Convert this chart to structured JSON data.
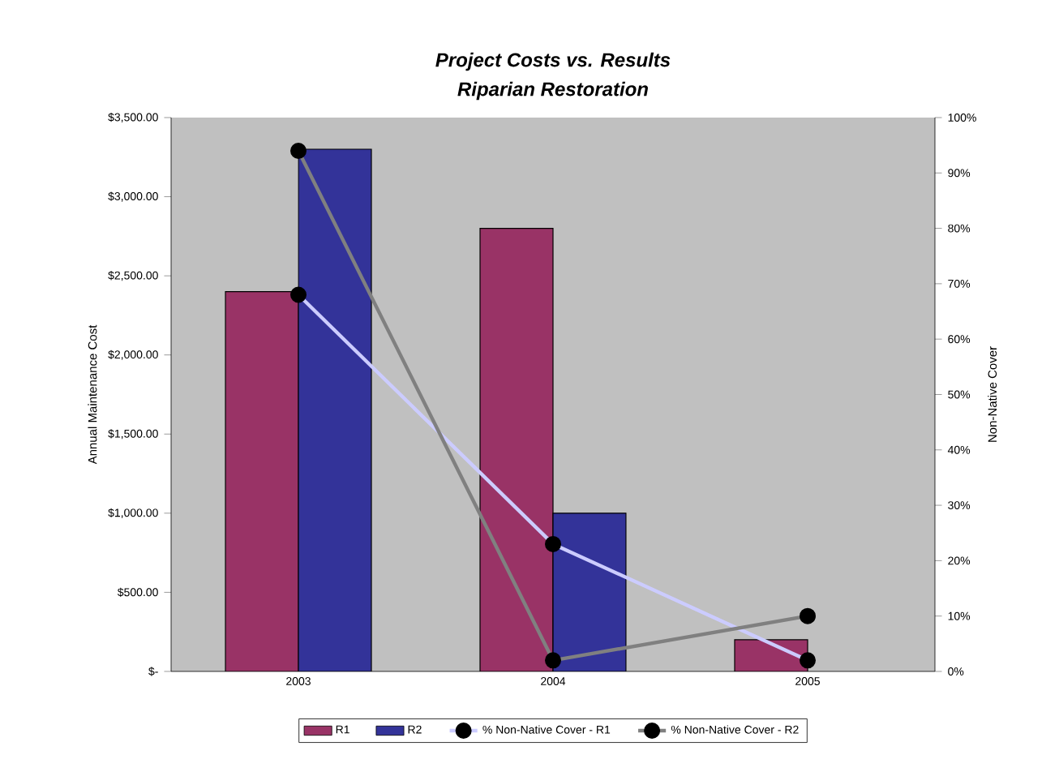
{
  "chart_data": {
    "type": "bar",
    "title": "Project Costs vs. Results",
    "subtitle": "Riparian Restoration",
    "ylabel": "Annual Maintenance Cost",
    "y2label": "Non-Native Cover",
    "categories": [
      "2003",
      "2004",
      "2005"
    ],
    "series": [
      {
        "name": "R1",
        "color": "#993366",
        "values": [
          2400,
          2800,
          200
        ]
      },
      {
        "name": "R2",
        "color": "#333399",
        "values": [
          3300,
          1000,
          null
        ]
      },
      {
        "name": "% Non-Native Cover - R1",
        "type": "line",
        "axis": "y2",
        "color": "#ccccff",
        "marker": "circle",
        "values": [
          68,
          23,
          2
        ]
      },
      {
        "name": "% Non-Native Cover - R2",
        "type": "line",
        "axis": "y2",
        "color": "#808080",
        "marker": "circle",
        "values": [
          94,
          2,
          10
        ]
      }
    ],
    "ylim": [
      0,
      3500
    ],
    "yticks": [
      {
        "value": 0,
        "label": "$-"
      },
      {
        "value": 500,
        "label": "$500.00"
      },
      {
        "value": 1000,
        "label": "$1,000.00"
      },
      {
        "value": 1500,
        "label": "$1,500.00"
      },
      {
        "value": 2000,
        "label": "$2,000.00"
      },
      {
        "value": 2500,
        "label": "$2,500.00"
      },
      {
        "value": 3000,
        "label": "$3,000.00"
      },
      {
        "value": 3500,
        "label": "$3,500.00"
      }
    ],
    "y2lim": [
      0,
      100
    ],
    "y2ticks": [
      {
        "value": 0,
        "label": "0%"
      },
      {
        "value": 10,
        "label": "10%"
      },
      {
        "value": 20,
        "label": "20%"
      },
      {
        "value": 30,
        "label": "30%"
      },
      {
        "value": 40,
        "label": "40%"
      },
      {
        "value": 50,
        "label": "50%"
      },
      {
        "value": 60,
        "label": "60%"
      },
      {
        "value": 70,
        "label": "70%"
      },
      {
        "value": 80,
        "label": "80%"
      },
      {
        "value": 90,
        "label": "90%"
      },
      {
        "value": 100,
        "label": "100%"
      }
    ],
    "grid": false,
    "legend": "bottom"
  }
}
